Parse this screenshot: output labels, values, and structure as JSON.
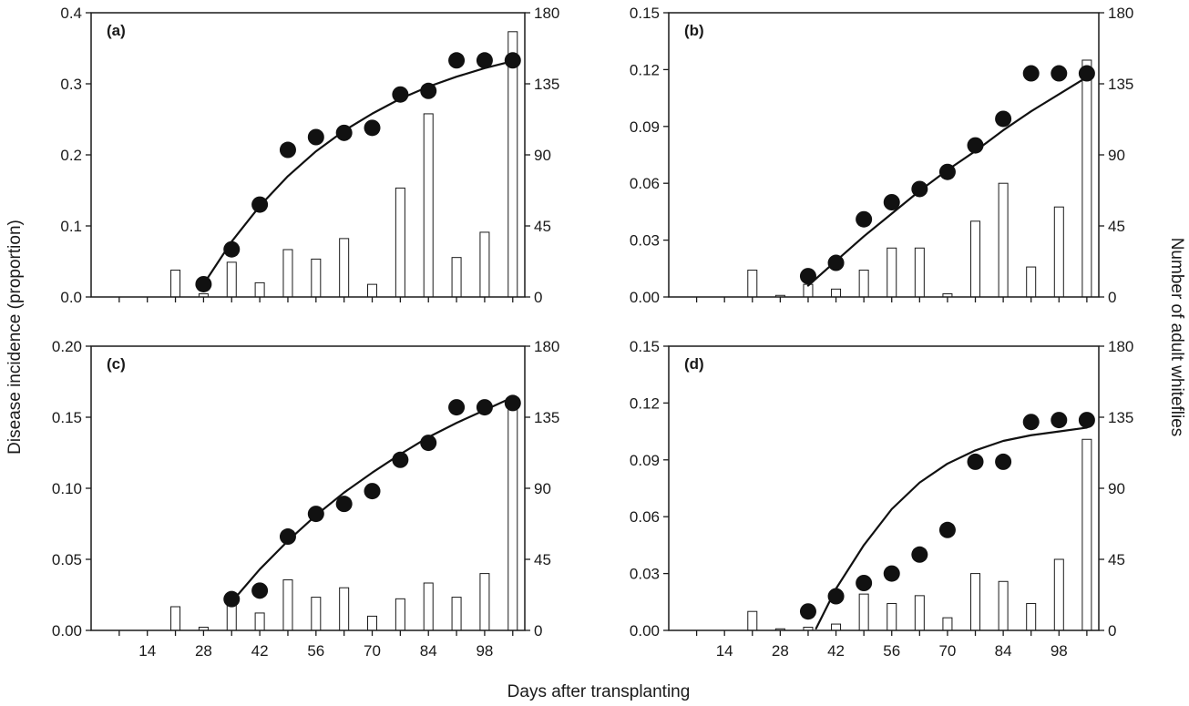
{
  "figure": {
    "shared_xlabel": "Days after transplanting",
    "shared_ylabel_left": "Disease incidence (proportion)",
    "shared_ylabel_right": "Number of adult whiteflies"
  },
  "chart_data": [
    {
      "type": "bar",
      "panel": "(a)",
      "x_ticks": [
        "14",
        "28",
        "42",
        "56",
        "70",
        "84",
        "98"
      ],
      "xlim": [
        0,
        108
      ],
      "left_axis": {
        "ylim": [
          0,
          0.4
        ],
        "ticks": [
          "0.0",
          "0.1",
          "0.2",
          "0.3",
          "0.4"
        ]
      },
      "right_axis": {
        "ylim": [
          0,
          180
        ],
        "ticks": [
          "0",
          "45",
          "90",
          "135",
          "180"
        ]
      },
      "bars": {
        "x": [
          21,
          28,
          35,
          42,
          49,
          56,
          63,
          70,
          77,
          84,
          91,
          98,
          105
        ],
        "values": [
          17,
          2,
          22,
          9,
          30,
          24,
          37,
          8,
          69,
          116,
          25,
          41,
          168
        ]
      },
      "points": {
        "x": [
          28,
          35,
          42,
          49,
          56,
          63,
          70,
          77,
          84,
          91,
          98,
          105
        ],
        "values": [
          0.018,
          0.067,
          0.13,
          0.207,
          0.225,
          0.231,
          0.238,
          0.285,
          0.29,
          0.333,
          0.333,
          0.333
        ]
      },
      "curve": {
        "x": [
          28,
          35,
          42,
          49,
          56,
          63,
          70,
          77,
          84,
          91,
          98,
          105
        ],
        "values": [
          0.018,
          0.078,
          0.128,
          0.17,
          0.205,
          0.234,
          0.258,
          0.279,
          0.296,
          0.31,
          0.322,
          0.332
        ]
      }
    },
    {
      "type": "bar",
      "panel": "(b)",
      "x_ticks": [
        "14",
        "28",
        "42",
        "56",
        "70",
        "84",
        "98"
      ],
      "xlim": [
        0,
        108
      ],
      "left_axis": {
        "ylim": [
          0,
          0.15
        ],
        "ticks": [
          "0.00",
          "0.03",
          "0.06",
          "0.09",
          "0.12",
          "0.15"
        ]
      },
      "right_axis": {
        "ylim": [
          0,
          180
        ],
        "ticks": [
          "0",
          "45",
          "90",
          "135",
          "180"
        ]
      },
      "bars": {
        "x": [
          21,
          28,
          35,
          42,
          49,
          56,
          63,
          70,
          77,
          84,
          91,
          98,
          105
        ],
        "values": [
          17,
          1,
          8,
          5,
          17,
          31,
          31,
          2,
          48,
          72,
          19,
          57,
          150
        ]
      },
      "points": {
        "x": [
          35,
          42,
          49,
          56,
          63,
          70,
          77,
          84,
          91,
          98,
          105
        ],
        "values": [
          0.011,
          0.018,
          0.041,
          0.05,
          0.057,
          0.066,
          0.08,
          0.094,
          0.118,
          0.118,
          0.118
        ]
      },
      "curve": {
        "x": [
          35,
          42,
          49,
          56,
          63,
          70,
          77,
          84,
          91,
          98,
          105
        ],
        "values": [
          0.006,
          0.019,
          0.032,
          0.044,
          0.056,
          0.067,
          0.077,
          0.088,
          0.098,
          0.107,
          0.116
        ]
      }
    },
    {
      "type": "bar",
      "panel": "(c)",
      "x_ticks": [
        "14",
        "28",
        "42",
        "56",
        "70",
        "84",
        "98"
      ],
      "xlim": [
        0,
        108
      ],
      "left_axis": {
        "ylim": [
          0,
          0.2
        ],
        "ticks": [
          "0.00",
          "0.05",
          "0.10",
          "0.15",
          "0.20"
        ]
      },
      "right_axis": {
        "ylim": [
          0,
          180
        ],
        "ticks": [
          "0",
          "45",
          "90",
          "135",
          "180"
        ]
      },
      "bars": {
        "x": [
          21,
          28,
          35,
          42,
          49,
          56,
          63,
          70,
          77,
          84,
          91,
          98,
          105
        ],
        "values": [
          15,
          2,
          18,
          11,
          32,
          21,
          27,
          9,
          20,
          30,
          21,
          36,
          145
        ]
      },
      "points": {
        "x": [
          35,
          42,
          49,
          56,
          63,
          70,
          77,
          84,
          91,
          98,
          105
        ],
        "values": [
          0.022,
          0.028,
          0.066,
          0.082,
          0.089,
          0.098,
          0.12,
          0.132,
          0.157,
          0.157,
          0.16
        ]
      },
      "curve": {
        "x": [
          35,
          42,
          49,
          56,
          63,
          70,
          77,
          84,
          91,
          98,
          105
        ],
        "values": [
          0.02,
          0.043,
          0.063,
          0.081,
          0.097,
          0.111,
          0.124,
          0.136,
          0.146,
          0.155,
          0.164
        ]
      }
    },
    {
      "type": "bar",
      "panel": "(d)",
      "x_ticks": [
        "14",
        "28",
        "42",
        "56",
        "70",
        "84",
        "98"
      ],
      "xlim": [
        0,
        108
      ],
      "left_axis": {
        "ylim": [
          0,
          0.15
        ],
        "ticks": [
          "0.00",
          "0.03",
          "0.06",
          "0.09",
          "0.12",
          "0.15"
        ]
      },
      "right_axis": {
        "ylim": [
          0,
          180
        ],
        "ticks": [
          "0",
          "45",
          "90",
          "135",
          "180"
        ]
      },
      "bars": {
        "x": [
          21,
          28,
          35,
          42,
          49,
          56,
          63,
          70,
          77,
          84,
          91,
          98,
          105
        ],
        "values": [
          12,
          1,
          2,
          4,
          23,
          17,
          22,
          8,
          36,
          31,
          17,
          45,
          121
        ]
      },
      "points": {
        "x": [
          35,
          42,
          49,
          56,
          63,
          70,
          77,
          84,
          91,
          98,
          105
        ],
        "values": [
          0.01,
          0.018,
          0.025,
          0.03,
          0.04,
          0.053,
          0.089,
          0.089,
          0.11,
          0.111,
          0.111
        ]
      },
      "curve": {
        "x": [
          37,
          42,
          49,
          56,
          63,
          70,
          77,
          84,
          91,
          98,
          105
        ],
        "values": [
          0.001,
          0.022,
          0.045,
          0.064,
          0.078,
          0.088,
          0.095,
          0.1,
          0.103,
          0.105,
          0.107
        ]
      }
    }
  ]
}
